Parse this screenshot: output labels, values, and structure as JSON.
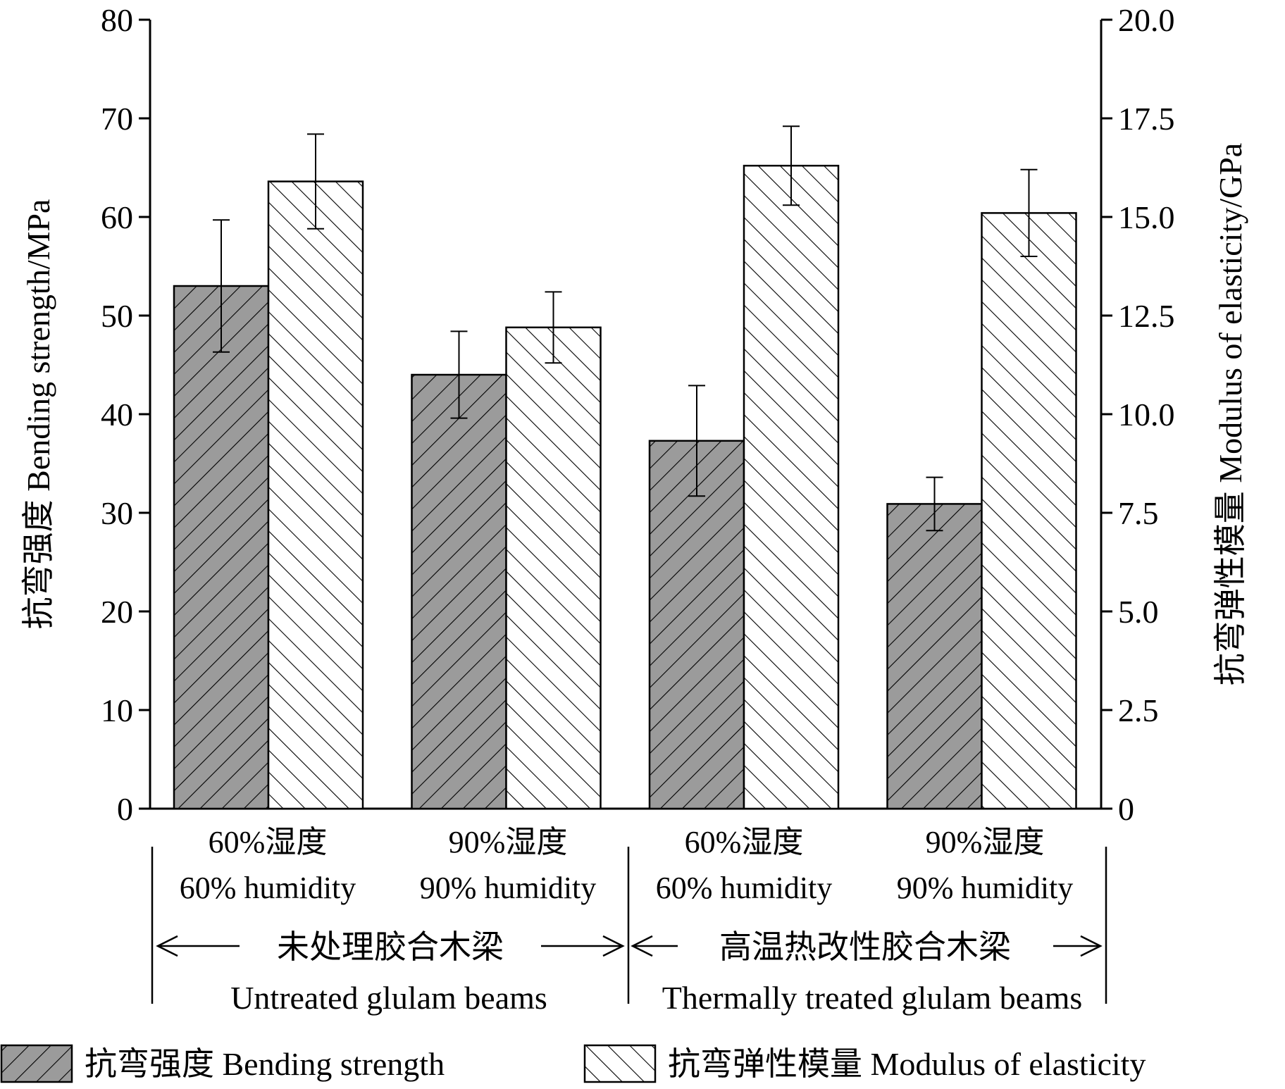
{
  "chart_data": {
    "type": "bar",
    "categories": [
      {
        "zh": "60%湿度",
        "en": "60% humidity",
        "group": 0
      },
      {
        "zh": "90%湿度",
        "en": "90% humidity",
        "group": 0
      },
      {
        "zh": "60%湿度",
        "en": "60% humidity",
        "group": 1
      },
      {
        "zh": "90%湿度",
        "en": "90% humidity",
        "group": 1
      }
    ],
    "groups": [
      {
        "zh": "未处理胶合木梁",
        "en": "Untreated glulam beams"
      },
      {
        "zh": "高温热改性胶合木梁",
        "en": "Thermally treated glulam beams"
      }
    ],
    "series": [
      {
        "name": "抗弯强度 Bending strength",
        "axis": "left",
        "pattern": "forward-hatch-gray",
        "values": [
          53.0,
          44.0,
          37.3,
          30.9
        ],
        "errors": [
          6.7,
          4.4,
          5.6,
          2.7
        ]
      },
      {
        "name": "抗弯弹性模量 Modulus of elasticity",
        "axis": "right",
        "pattern": "back-hatch-white",
        "values": [
          15.9,
          12.2,
          16.3,
          15.1
        ],
        "errors": [
          1.2,
          0.9,
          1.0,
          1.1
        ]
      }
    ],
    "y_left": {
      "label": "抗弯强度  Bending strength/MPa",
      "range": [
        0,
        80
      ],
      "ticks": [
        "0",
        "10",
        "20",
        "30",
        "40",
        "50",
        "60",
        "70",
        "80"
      ]
    },
    "y_right": {
      "label": "抗弯弹性模量  Modulus of elasticity/GPa",
      "range": [
        0,
        20
      ],
      "ticks": [
        "0",
        "2.5",
        "5.0",
        "7.5",
        "10.0",
        "12.5",
        "15.0",
        "17.5",
        "20.0"
      ]
    },
    "legend_position": "bottom",
    "grid": false
  },
  "colors": {
    "bending_fill": "#9b9b9b",
    "modulus_fill": "#ffffff",
    "stroke": "#000000",
    "error_bar": "#000000"
  }
}
